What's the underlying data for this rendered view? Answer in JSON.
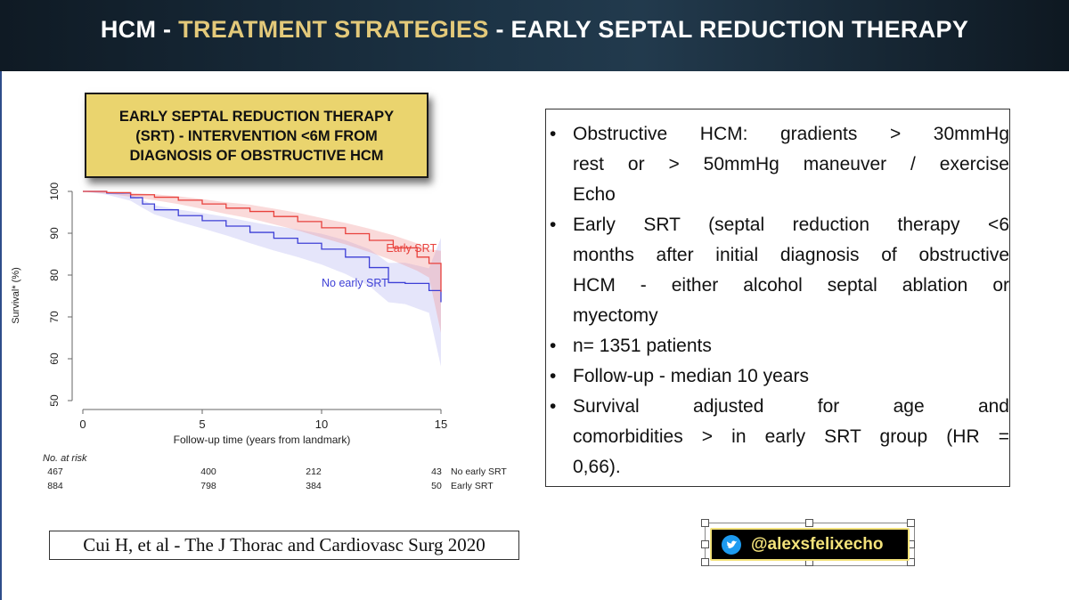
{
  "header": {
    "title_part1": "HCM - ",
    "title_part2": "TREATMENT STRATEGIES",
    "title_part3": " - EARLY SEPTAL REDUCTION THERAPY"
  },
  "callout": {
    "lines": [
      "EARLY SEPTAL REDUCTION THERAPY",
      "(SRT) - INTERVENTION <6M FROM",
      "DIAGNOSIS OF OBSTRUCTIVE HCM"
    ]
  },
  "chart_data": {
    "type": "line",
    "xlabel": "Follow-up time (years from landmark)",
    "ylabel": "Survival* (%)",
    "xlim": [
      0,
      15
    ],
    "ylim": [
      50,
      100
    ],
    "xticks": [
      "0",
      "5",
      "10",
      "15"
    ],
    "yticks": [
      "50",
      "60",
      "70",
      "80",
      "90",
      "100"
    ],
    "series": [
      {
        "name": "Early SRT",
        "color": "#e8413c",
        "x": [
          0,
          1,
          2,
          3,
          4,
          5,
          6,
          7,
          8,
          9,
          10,
          11,
          12,
          13,
          14,
          14.5,
          15
        ],
        "y": [
          100,
          99.7,
          99.2,
          98.6,
          97.9,
          97.0,
          96.0,
          95.2,
          94.0,
          92.8,
          91.3,
          89.9,
          88.3,
          86.5,
          84.3,
          82.8,
          76.0
        ]
      },
      {
        "name": "No early SRT",
        "color": "#3d3fd6",
        "x": [
          0,
          1,
          2,
          2.5,
          3,
          4,
          5,
          6,
          7,
          8,
          9,
          10,
          11,
          12,
          12.8,
          13.5,
          14.5,
          15
        ],
        "y": [
          100,
          99.6,
          98.5,
          97.0,
          95.6,
          94.2,
          93.0,
          91.7,
          90.2,
          88.8,
          87.6,
          86.2,
          84.3,
          81.8,
          78.2,
          78.0,
          76.3,
          73.5
        ]
      }
    ],
    "at_risk": {
      "label": "No. at risk",
      "times": [
        "0",
        "5",
        "10",
        "15"
      ],
      "rows": [
        {
          "name": "No early SRT",
          "values": [
            "467",
            "400",
            "212",
            "43"
          ]
        },
        {
          "name": "Early SRT",
          "values": [
            "884",
            "798",
            "384",
            "50"
          ]
        }
      ]
    }
  },
  "bullets": [
    {
      "lines": [
        "Obstructive HCM: gradients > 30mmHg",
        "rest or > 50mmHg maneuver / exercise",
        "Echo"
      ]
    },
    {
      "lines": [
        "Early SRT (septal reduction therapy <6",
        "months after initial diagnosis of obstructive",
        "HCM - either alcohol septal ablation or",
        "myectomy"
      ]
    },
    {
      "lines": [
        "n= 1351 patients"
      ]
    },
    {
      "lines": [
        "Follow-up - median 10 years"
      ]
    },
    {
      "lines": [
        "Survival adjusted for age and",
        "comorbidities > in early SRT group (HR =",
        "0,66)."
      ]
    }
  ],
  "citation": "Cui H, et al - The J Thorac and Cardiovasc Surg 2020",
  "social": {
    "icon": "twitter-icon",
    "handle": "@alexsfelixecho"
  }
}
